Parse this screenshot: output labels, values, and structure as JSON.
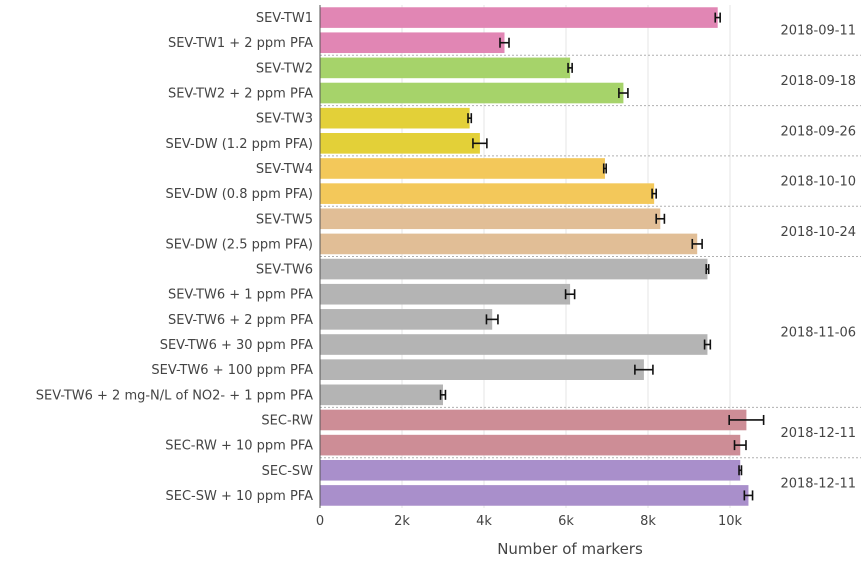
{
  "chart_data": {
    "type": "bar",
    "orientation": "horizontal",
    "xlabel": "Number of markers",
    "xlim": [
      0,
      11000
    ],
    "x_ticks": [
      0,
      2000,
      4000,
      6000,
      8000,
      10000
    ],
    "x_tick_labels": [
      "0",
      "2k",
      "4k",
      "6k",
      "8k",
      "10k"
    ],
    "grid": true,
    "categories": [
      "SEV-TW1",
      "SEV-TW1 + 2 ppm PFA",
      "SEV-TW2",
      "SEV-TW2 + 2 ppm PFA",
      "SEV-TW3",
      "SEV-DW (1.2 ppm PFA)",
      "SEV-TW4",
      "SEV-DW (0.8 ppm PFA)",
      "SEV-TW5",
      "SEV-DW (2.5 ppm PFA)",
      "SEV-TW6",
      "SEV-TW6 + 1 ppm PFA",
      "SEV-TW6 + 2 ppm PFA",
      "SEV-TW6 + 30 ppm PFA",
      "SEV-TW6 + 100 ppm PFA",
      "SEV-TW6 + 2 mg-N/L of NO2- + 1 ppm PFA",
      "SEC-RW",
      "SEC-RW + 10 ppm PFA",
      "SEC-SW",
      "SEC-SW + 10 ppm PFA"
    ],
    "values": [
      9700,
      4500,
      6100,
      7400,
      3650,
      3900,
      6950,
      8150,
      8300,
      9200,
      9450,
      6100,
      4200,
      9450,
      7900,
      3000,
      10400,
      10250,
      10250,
      10450
    ],
    "error": [
      60,
      110,
      50,
      110,
      40,
      170,
      30,
      50,
      100,
      120,
      30,
      110,
      140,
      70,
      220,
      60,
      420,
      140,
      30,
      100
    ],
    "colors": [
      "#e186b4",
      "#e186b4",
      "#a6d36a",
      "#a6d36a",
      "#e3d038",
      "#e3d038",
      "#f3c85a",
      "#f3c85a",
      "#e1be96",
      "#e1be96",
      "#b4b4b4",
      "#b4b4b4",
      "#b4b4b4",
      "#b4b4b4",
      "#b4b4b4",
      "#b4b4b4",
      "#cd8d96",
      "#cd8d96",
      "#a98fcb",
      "#a98fcb"
    ],
    "groups": [
      {
        "label": "2018-09-11",
        "start": 0,
        "end": 1
      },
      {
        "label": "2018-09-18",
        "start": 2,
        "end": 3
      },
      {
        "label": "2018-09-26",
        "start": 4,
        "end": 5
      },
      {
        "label": "2018-10-10",
        "start": 6,
        "end": 7
      },
      {
        "label": "2018-10-24",
        "start": 8,
        "end": 9
      },
      {
        "label": "2018-11-06",
        "start": 10,
        "end": 15
      },
      {
        "label": "2018-12-11",
        "start": 16,
        "end": 17
      },
      {
        "label": "2018-12-11",
        "start": 18,
        "end": 19
      }
    ]
  }
}
